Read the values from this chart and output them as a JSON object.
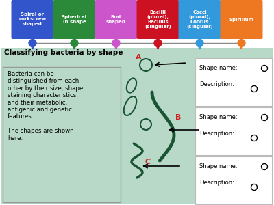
{
  "title": "Classifying bacteria by shape",
  "background_color": "#b8d8c8",
  "top_boxes": [
    {
      "label": "Spiral or\ncorkscrew\nshaped",
      "color": "#3355cc"
    },
    {
      "label": "Spherical\nin shape",
      "color": "#2a8a3a"
    },
    {
      "label": "Rod\nshaped",
      "color": "#cc55cc"
    },
    {
      "label": "Bacilli\n(plural),\nBacillus\n(singular)",
      "color": "#cc1122"
    },
    {
      "label": "Cocci\n(plural),\nCoccus\n(singular)",
      "color": "#3399dd"
    },
    {
      "label": "Spirillum",
      "color": "#ee7722"
    }
  ],
  "drop_colors": [
    "#3355cc",
    "#2a8a3a",
    "#cc55cc",
    "#cc1122",
    "#3399dd",
    "#ee7722"
  ],
  "body_text": "Bacteria can be\ndistinguished from each\nother by their size, shape,\nstaining characteristics,\nand their metabolic,\nantigenic and genetic\nfeatures.\n\nThe shapes are shown\nhere:",
  "labels": [
    "A",
    "B",
    "C"
  ],
  "label_color": "#cc2222",
  "bacteria_color": "#1a5533",
  "right_box_color": "white",
  "right_box_edge": "#bbbbbb"
}
